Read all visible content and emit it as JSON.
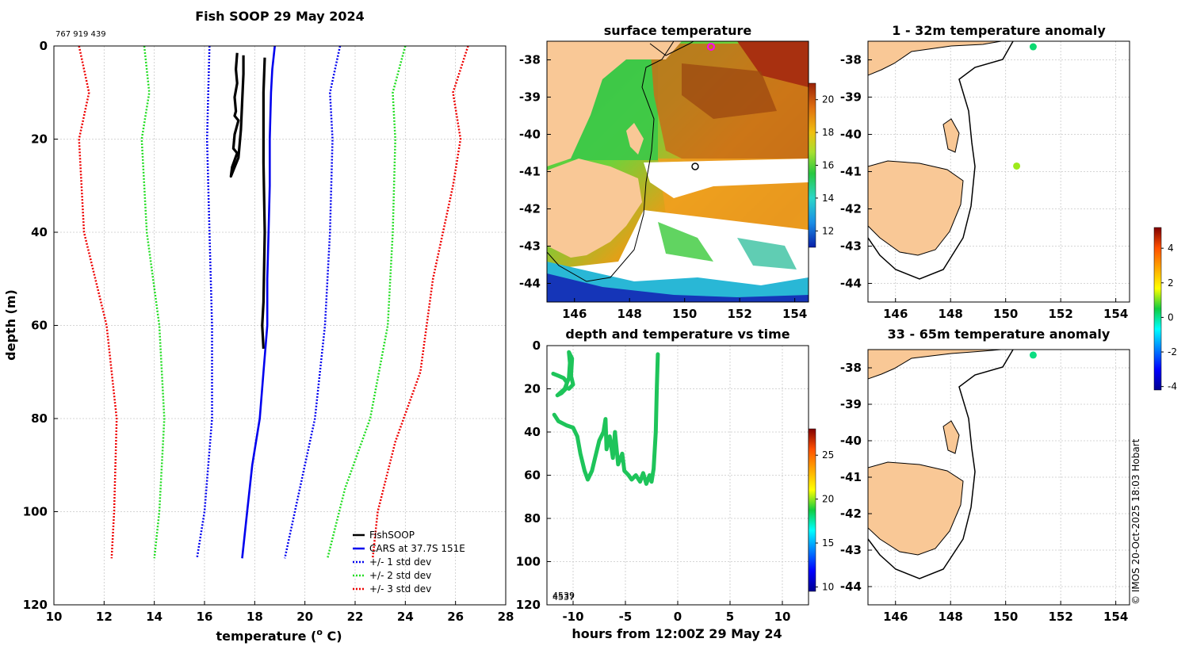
{
  "figure_title": "Fish SOOP 29 May 2024",
  "ids_label": "767 919 439",
  "copyright": "© IMOS 20-Oct-2025 18:03 Hobart",
  "colors": {
    "fishsoop": "#000000",
    "cars": "#0000ee",
    "std1": "#0000ee",
    "std2": "#22dd22",
    "std3": "#ee0000",
    "land": "#f9c896",
    "track": "#1ec45a"
  },
  "chart_data": [
    {
      "id": "profile",
      "type": "line",
      "xlabel": "temperature (o C)",
      "ylabel": "depth (m)",
      "xlim": [
        10,
        28
      ],
      "ylim": [
        0,
        120
      ],
      "y_reversed": true,
      "xticks": [
        "10",
        "12",
        "14",
        "16",
        "18",
        "20",
        "22",
        "24",
        "26",
        "28"
      ],
      "yticks": [
        "0",
        "20",
        "40",
        "60",
        "80",
        "100",
        "120"
      ],
      "legend_position": "bottom-right",
      "legend": [
        "FishSOOP",
        "CARS at 37.7S 151E",
        "+/- 1 std dev",
        "+/- 2 std dev",
        "+/- 3 std dev"
      ],
      "series": [
        {
          "name": "FishSOOP cast 1",
          "style": "solid-black",
          "points": [
            [
              17.3,
              1.5
            ],
            [
              17.25,
              5
            ],
            [
              17.3,
              8
            ],
            [
              17.2,
              11
            ],
            [
              17.25,
              14
            ],
            [
              17.2,
              15
            ],
            [
              17.35,
              16
            ],
            [
              17.2,
              19
            ],
            [
              17.15,
              22
            ],
            [
              17.3,
              23
            ],
            [
              17.1,
              26
            ],
            [
              17.05,
              28
            ],
            [
              17.2,
              26
            ],
            [
              17.35,
              24
            ],
            [
              17.45,
              18
            ],
            [
              17.5,
              12
            ],
            [
              17.55,
              6
            ],
            [
              17.55,
              2
            ]
          ]
        },
        {
          "name": "FishSOOP cast 2",
          "style": "solid-black",
          "points": [
            [
              18.4,
              2.5
            ],
            [
              18.35,
              10
            ],
            [
              18.35,
              25
            ],
            [
              18.4,
              40
            ],
            [
              18.35,
              55
            ],
            [
              18.3,
              60
            ],
            [
              18.35,
              65
            ]
          ]
        },
        {
          "name": "CARS at 37.7S 151E",
          "style": "solid-blue",
          "points": [
            [
              18.8,
              0
            ],
            [
              18.7,
              5
            ],
            [
              18.65,
              10
            ],
            [
              18.6,
              20
            ],
            [
              18.6,
              30
            ],
            [
              18.55,
              40
            ],
            [
              18.5,
              50
            ],
            [
              18.5,
              60
            ],
            [
              18.35,
              70
            ],
            [
              18.2,
              80
            ],
            [
              17.9,
              90
            ],
            [
              17.7,
              100
            ],
            [
              17.5,
              110
            ]
          ]
        },
        {
          "name": "-1 std dev",
          "style": "dotted-blue",
          "points": [
            [
              16.2,
              0
            ],
            [
              16.15,
              10
            ],
            [
              16.1,
              20
            ],
            [
              16.2,
              40
            ],
            [
              16.3,
              60
            ],
            [
              16.3,
              80
            ],
            [
              16.0,
              100
            ],
            [
              15.7,
              110
            ]
          ]
        },
        {
          "name": "+1 std dev",
          "style": "dotted-blue",
          "points": [
            [
              21.4,
              0
            ],
            [
              21.0,
              10
            ],
            [
              21.1,
              20
            ],
            [
              21.0,
              40
            ],
            [
              20.8,
              60
            ],
            [
              20.4,
              80
            ],
            [
              19.8,
              95
            ],
            [
              19.2,
              110
            ]
          ]
        },
        {
          "name": "-2 std dev",
          "style": "dotted-green",
          "points": [
            [
              13.6,
              0
            ],
            [
              13.8,
              10
            ],
            [
              13.5,
              20
            ],
            [
              13.7,
              40
            ],
            [
              14.2,
              60
            ],
            [
              14.4,
              80
            ],
            [
              14.2,
              100
            ],
            [
              14.0,
              110
            ]
          ]
        },
        {
          "name": "+2 std dev",
          "style": "dotted-green",
          "points": [
            [
              24.0,
              0
            ],
            [
              23.5,
              10
            ],
            [
              23.6,
              20
            ],
            [
              23.5,
              40
            ],
            [
              23.3,
              60
            ],
            [
              22.6,
              80
            ],
            [
              21.6,
              95
            ],
            [
              20.9,
              110
            ]
          ]
        },
        {
          "name": "-3 std dev",
          "style": "dotted-red",
          "points": [
            [
              11.0,
              0
            ],
            [
              11.4,
              10
            ],
            [
              11.0,
              20
            ],
            [
              11.2,
              40
            ],
            [
              12.1,
              60
            ],
            [
              12.5,
              80
            ],
            [
              12.4,
              100
            ],
            [
              12.3,
              110
            ]
          ]
        },
        {
          "name": "+3 std dev",
          "style": "dotted-red",
          "points": [
            [
              26.5,
              0
            ],
            [
              25.9,
              10
            ],
            [
              26.2,
              20
            ],
            [
              25.9,
              30
            ],
            [
              25.1,
              50
            ],
            [
              24.6,
              70
            ],
            [
              23.6,
              85
            ],
            [
              22.9,
              100
            ],
            [
              22.7,
              110
            ]
          ]
        }
      ]
    },
    {
      "id": "sst_map",
      "type": "heatmap",
      "title": "surface temperature",
      "xlim": [
        145,
        154.5
      ],
      "ylim": [
        -44.5,
        -37.5
      ],
      "xticks": [
        "146",
        "148",
        "150",
        "152",
        "154"
      ],
      "yticks": [
        "-38",
        "-39",
        "-40",
        "-41",
        "-42",
        "-43",
        "-44"
      ],
      "colorbar_ticks": [
        "12",
        "14",
        "16",
        "18",
        "20"
      ],
      "colorbar_range": [
        11,
        21
      ],
      "markers": [
        {
          "lon": 150.9,
          "lat": -37.65,
          "style": "magenta-ring"
        },
        {
          "lon": 150.4,
          "lat": -40.85,
          "style": "black-ring"
        }
      ]
    },
    {
      "id": "depth_time",
      "type": "scatter",
      "title": "depth and temperature vs time",
      "xlabel": "hours from 12:00Z 29 May 24",
      "xlim": [
        -12.5,
        12.5
      ],
      "ylim": [
        0,
        120
      ],
      "y_reversed": true,
      "xticks": [
        "-10",
        "-5",
        "0",
        "5",
        "10"
      ],
      "yticks": [
        "0",
        "20",
        "40",
        "60",
        "80",
        "100",
        "120"
      ],
      "colorbar_ticks": [
        "10",
        "15",
        "20",
        "25"
      ],
      "colorbar_range": [
        9.5,
        28
      ],
      "annotations": [
        "4539",
        "4537"
      ],
      "series": [
        {
          "name": "cast A",
          "points": [
            [
              -11.9,
              13
            ],
            [
              -11.4,
              14
            ],
            [
              -10.9,
              15
            ],
            [
              -10.6,
              17
            ],
            [
              -10.7,
              20
            ],
            [
              -11.1,
              22
            ],
            [
              -11.5,
              23
            ],
            [
              -10.8,
              20
            ],
            [
              -10.4,
              15
            ],
            [
              -10.3,
              8
            ],
            [
              -10.4,
              3
            ],
            [
              -10.1,
              6
            ],
            [
              -10.2,
              14
            ],
            [
              -10.0,
              18
            ],
            [
              -10.4,
              20
            ]
          ]
        },
        {
          "name": "cast B",
          "points": [
            [
              -11.8,
              32
            ],
            [
              -11.4,
              35
            ],
            [
              -10.6,
              37
            ],
            [
              -10.0,
              38
            ],
            [
              -9.6,
              42
            ],
            [
              -9.3,
              50
            ],
            [
              -8.9,
              58
            ],
            [
              -8.6,
              62
            ],
            [
              -8.2,
              58
            ],
            [
              -7.9,
              52
            ],
            [
              -7.5,
              44
            ],
            [
              -7.1,
              40
            ],
            [
              -6.9,
              34
            ],
            [
              -6.8,
              48
            ],
            [
              -6.5,
              42
            ],
            [
              -6.2,
              52
            ],
            [
              -6.0,
              40
            ],
            [
              -5.7,
              55
            ],
            [
              -5.3,
              50
            ],
            [
              -5.1,
              58
            ],
            [
              -4.7,
              60
            ],
            [
              -4.4,
              62
            ],
            [
              -4.0,
              60
            ],
            [
              -3.6,
              63
            ],
            [
              -3.3,
              59
            ],
            [
              -3.0,
              64
            ],
            [
              -2.7,
              60
            ],
            [
              -2.5,
              63
            ],
            [
              -2.3,
              57
            ],
            [
              -2.1,
              40
            ],
            [
              -2.0,
              20
            ],
            [
              -1.9,
              4
            ]
          ]
        }
      ]
    },
    {
      "id": "anom_upper",
      "type": "scatter",
      "title": "1 - 32m temperature anomaly",
      "xlim": [
        145,
        154.5
      ],
      "ylim": [
        -44.5,
        -37.5
      ],
      "xticks": [
        "146",
        "148",
        "150",
        "152",
        "154"
      ],
      "yticks": [
        "-38",
        "-39",
        "-40",
        "-41",
        "-42",
        "-43",
        "-44"
      ],
      "colorbar_ticks": [
        "-4",
        "-2",
        "0",
        "2",
        "4"
      ],
      "colorbar_range": [
        -4.2,
        5.2
      ],
      "points": [
        {
          "lon": 151.0,
          "lat": -37.65,
          "anomaly": 0.2
        },
        {
          "lon": 150.4,
          "lat": -40.85,
          "anomaly": 1.2
        }
      ]
    },
    {
      "id": "anom_lower",
      "type": "scatter",
      "title": "33 - 65m temperature anomaly",
      "xlim": [
        145,
        154.5
      ],
      "ylim": [
        -44.5,
        -37.5
      ],
      "xticks": [
        "146",
        "148",
        "150",
        "152",
        "154"
      ],
      "yticks": [
        "-38",
        "-39",
        "-40",
        "-41",
        "-42",
        "-43",
        "-44"
      ],
      "points": [
        {
          "lon": 151.0,
          "lat": -37.65,
          "anomaly": 0.1
        }
      ]
    }
  ]
}
